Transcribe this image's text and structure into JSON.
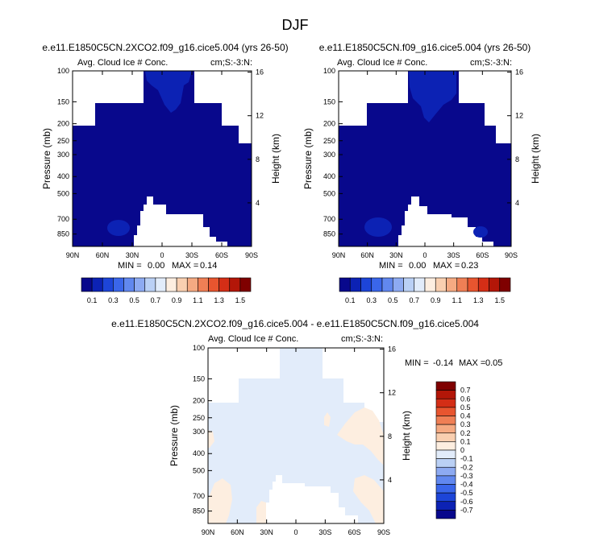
{
  "page_title": "DJF",
  "chart_data": [
    {
      "type": "heatmap",
      "title": "e.e11.E1850C5CN.2XCO2.f09_g16.cice5.004 (yrs 26-50)",
      "left_subtitle": "Avg. Cloud Ice # Conc.",
      "right_subtitle": "cm;S:-3:N:",
      "xlabel": "",
      "ylabel": "Pressure (mb)",
      "y2label": "Height (km)",
      "x_ticks": [
        "90N",
        "60N",
        "30N",
        "0",
        "30S",
        "60S",
        "90S"
      ],
      "y_ticks": [
        "100",
        "150",
        "200",
        "250",
        "300",
        "400",
        "500",
        "700",
        "850"
      ],
      "y2_ticks": [
        "16",
        "12",
        "8",
        "4"
      ],
      "stats": {
        "min_label": "MIN =",
        "min": "0.00",
        "max_label": "MAX =",
        "max": "0.14"
      },
      "field_range": {
        "min": 0.0,
        "max": 0.14
      },
      "colorbar": {
        "orientation": "horizontal",
        "levels": [
          "0.1",
          "0.3",
          "0.5",
          "0.7",
          "0.9",
          "1.1",
          "1.3",
          "1.5"
        ],
        "colors": [
          "#08088c",
          "#0c22b4",
          "#1d45d8",
          "#3a66ea",
          "#6188ef",
          "#8daaf2",
          "#bad0f5",
          "#e2ecfa",
          "#fdeee0",
          "#f9cfb0",
          "#f5aa82",
          "#ef7f55",
          "#e8552f",
          "#d42e16",
          "#b31608",
          "#7f0000"
        ]
      }
    },
    {
      "type": "heatmap",
      "title": "e.e11.E1850C5CN.f09_g16.cice5.004 (yrs 26-50)",
      "left_subtitle": "Avg. Cloud Ice # Conc.",
      "right_subtitle": "cm;S:-3:N:",
      "xlabel": "",
      "ylabel": "Pressure (mb)",
      "y2label": "Height (km)",
      "x_ticks": [
        "90N",
        "60N",
        "30N",
        "0",
        "30S",
        "60S",
        "90S"
      ],
      "y_ticks": [
        "100",
        "150",
        "200",
        "250",
        "300",
        "400",
        "500",
        "700",
        "850"
      ],
      "y2_ticks": [
        "16",
        "12",
        "8",
        "4"
      ],
      "stats": {
        "min_label": "MIN =",
        "min": "0.00",
        "max_label": "MAX =",
        "max": "0.23"
      },
      "field_range": {
        "min": 0.0,
        "max": 0.23
      },
      "colorbar": {
        "orientation": "horizontal",
        "levels": [
          "0.1",
          "0.3",
          "0.5",
          "0.7",
          "0.9",
          "1.1",
          "1.3",
          "1.5"
        ],
        "colors": [
          "#08088c",
          "#0c22b4",
          "#1d45d8",
          "#3a66ea",
          "#6188ef",
          "#8daaf2",
          "#bad0f5",
          "#e2ecfa",
          "#fdeee0",
          "#f9cfb0",
          "#f5aa82",
          "#ef7f55",
          "#e8552f",
          "#d42e16",
          "#b31608",
          "#7f0000"
        ]
      }
    },
    {
      "type": "heatmap",
      "title": "e.e11.E1850C5CN.2XCO2.f09_g16.cice5.004 - e.e11.E1850C5CN.f09_g16.cice5.004",
      "left_subtitle": "Avg. Cloud Ice # Conc.",
      "right_subtitle": "cm;S:-3:N:",
      "xlabel": "",
      "ylabel": "Pressure (mb)",
      "y2label": "Height (km)",
      "x_ticks": [
        "90N",
        "60N",
        "30N",
        "0",
        "30S",
        "60S",
        "90S"
      ],
      "y_ticks": [
        "100",
        "150",
        "200",
        "250",
        "300",
        "400",
        "500",
        "700",
        "850"
      ],
      "y2_ticks": [
        "16",
        "12",
        "8",
        "4"
      ],
      "stats": {
        "min_label": "MIN =",
        "min": "-0.14",
        "max_label": "MAX =",
        "max": "0.05"
      },
      "field_range": {
        "min": -0.14,
        "max": 0.05
      },
      "colorbar": {
        "orientation": "vertical",
        "levels": [
          "0.7",
          "0.6",
          "0.5",
          "0.4",
          "0.3",
          "0.2",
          "0.1",
          "0",
          "-0.1",
          "-0.2",
          "-0.3",
          "-0.4",
          "-0.5",
          "-0.6",
          "-0.7"
        ],
        "colors": [
          "#7f0000",
          "#b31608",
          "#d42e16",
          "#e8552f",
          "#ef7f55",
          "#f5aa82",
          "#f9cfb0",
          "#fdeee0",
          "#e2ecfa",
          "#bad0f5",
          "#8daaf2",
          "#6188ef",
          "#3a66ea",
          "#1d45d8",
          "#0c22b4",
          "#08088c"
        ]
      }
    }
  ]
}
